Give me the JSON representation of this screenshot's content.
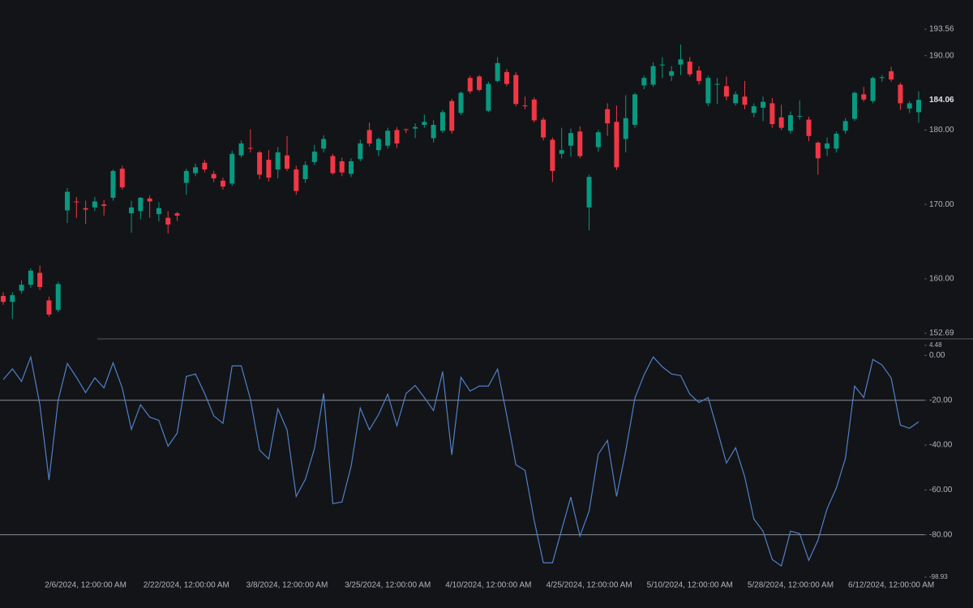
{
  "chart_data": [
    {
      "type": "candlestick",
      "categories": [
        null,
        null,
        null,
        null,
        null,
        null,
        null,
        null,
        null,
        "2/6/2024, 12:00:00 AM",
        null,
        null,
        null,
        null,
        null,
        null,
        null,
        null,
        null,
        null,
        "2/22/2024, 12:00:00 AM",
        null,
        null,
        null,
        null,
        null,
        null,
        null,
        null,
        null,
        null,
        "3/8/2024, 12:00:00 AM",
        null,
        null,
        null,
        null,
        null,
        null,
        null,
        null,
        null,
        null,
        "3/25/2024, 12:00:00 AM",
        null,
        null,
        null,
        null,
        null,
        null,
        null,
        null,
        null,
        null,
        "4/10/2024, 12:00:00 AM",
        null,
        null,
        null,
        null,
        null,
        null,
        null,
        null,
        null,
        null,
        "4/25/2024, 12:00:00 AM",
        null,
        null,
        null,
        null,
        null,
        null,
        null,
        null,
        null,
        null,
        "5/10/2024, 12:00:00 AM",
        null,
        null,
        null,
        null,
        null,
        null,
        null,
        null,
        null,
        null,
        "5/28/2024, 12:00:00 AM",
        null,
        null,
        null,
        null,
        null,
        null,
        null,
        null,
        null,
        null,
        "6/12/2024, 12:00:00 AM",
        null,
        null,
        null
      ],
      "ylim": [
        152.69,
        193.56
      ],
      "yticks": [
        152.69,
        {
          "value": 160,
          "label": "160.00"
        },
        {
          "value": 170,
          "label": "170.00"
        },
        {
          "value": 180,
          "label": "180.00"
        },
        {
          "value": 190,
          "label": "190.00"
        },
        193.56
      ],
      "series": [
        {
          "up_color": "#089981",
          "down_color": "#f23645",
          "open": [
            157.7,
            156.9,
            158.4,
            159.2,
            160.8,
            157.1,
            155.8,
            169.2,
            170.4,
            169.5,
            169.6,
            170.0,
            170.9,
            174.8,
            168.8,
            169.1,
            170.8,
            168.7,
            168.2,
            168.8,
            172.9,
            174.2,
            175.6,
            174.1,
            173.2,
            172.8,
            176.6,
            177.6,
            177.0,
            176.0,
            174.7,
            176.6,
            174.7,
            173.4,
            175.7,
            177.5,
            176.5,
            175.8,
            174.1,
            176.1,
            180.0,
            177.3,
            177.9,
            180.0,
            180.1,
            180.2,
            180.7,
            178.9,
            179.9,
            183.9,
            182.3,
            187.0,
            187.2,
            182.6,
            186.6,
            187.8,
            187.4,
            183.3,
            184.1,
            181.4,
            178.7,
            176.8,
            177.9,
            179.8,
            169.6,
            177.7,
            182.8,
            181.1,
            178.8,
            180.7,
            186.0,
            186.1,
            188.7,
            187.3,
            188.8,
            189.2,
            188.0,
            183.6,
            186.2,
            185.9,
            183.6,
            184.5,
            182.3,
            183.0,
            183.6,
            181.7,
            179.9,
            181.8,
            181.4,
            178.3,
            177.5,
            177.5,
            179.9,
            181.5,
            184.8,
            183.9,
            187.1,
            187.9,
            186.1,
            182.9,
            182.4
          ],
          "high": [
            158.2,
            158.2,
            159.8,
            161.4,
            161.8,
            157.6,
            159.6,
            172.2,
            171.0,
            170.5,
            171.0,
            170.6,
            174.7,
            175.2,
            170.5,
            171.0,
            171.2,
            170.3,
            169.1,
            169.0,
            174.8,
            175.5,
            176.0,
            174.5,
            173.6,
            177.2,
            178.6,
            180.1,
            177.2,
            177.3,
            177.7,
            179.2,
            175.2,
            175.8,
            178.0,
            179.3,
            176.8,
            176.3,
            176.2,
            178.7,
            181.0,
            179.0,
            180.3,
            180.4,
            180.2,
            180.9,
            182.1,
            181.3,
            182.7,
            184.2,
            185.2,
            187.3,
            187.4,
            186.5,
            189.8,
            188.2,
            187.8,
            184.5,
            184.4,
            181.7,
            179.0,
            180.3,
            180.2,
            180.5,
            174.0,
            180.0,
            183.6,
            183.3,
            184.7,
            185.0,
            187.3,
            189.1,
            189.8,
            188.6,
            191.5,
            189.8,
            188.6,
            187.3,
            187.0,
            187.2,
            185.2,
            186.6,
            183.6,
            184.5,
            184.3,
            183.4,
            182.5,
            184.0,
            181.8,
            178.5,
            179.0,
            179.8,
            181.6,
            185.2,
            185.8,
            187.2,
            187.4,
            188.5,
            186.4,
            183.9,
            185.2
          ],
          "low": [
            156.5,
            154.6,
            158.0,
            158.8,
            158.5,
            154.9,
            155.5,
            167.5,
            168.2,
            167.4,
            169.1,
            168.5,
            170.5,
            172.0,
            166.2,
            168.0,
            168.2,
            167.7,
            166.1,
            167.8,
            171.3,
            173.8,
            174.3,
            173.0,
            172.0,
            172.5,
            176.3,
            177.0,
            173.4,
            173.1,
            173.5,
            174.5,
            171.3,
            172.9,
            175.3,
            177.0,
            174.0,
            173.8,
            173.7,
            175.8,
            177.8,
            176.5,
            177.5,
            177.6,
            179.6,
            178.9,
            180.3,
            178.3,
            179.6,
            179.5,
            182.0,
            184.9,
            185.2,
            182.4,
            186.4,
            185.9,
            183.2,
            182.8,
            181.0,
            178.6,
            173.0,
            176.2,
            176.4,
            176.2,
            166.5,
            177.1,
            179.2,
            174.6,
            177.0,
            180.3,
            185.5,
            185.8,
            187.0,
            186.6,
            187.4,
            187.2,
            186.1,
            183.2,
            183.5,
            184.0,
            183.3,
            182.8,
            181.7,
            181.2,
            180.3,
            180.0,
            179.5,
            181.4,
            178.5,
            174.0,
            176.5,
            177.0,
            179.5,
            181.2,
            183.8,
            183.6,
            186.5,
            186.5,
            182.7,
            182.3,
            181.0
          ],
          "close": [
            156.9,
            157.8,
            159.2,
            161.1,
            158.9,
            155.2,
            159.3,
            171.7,
            170.3,
            169.3,
            170.4,
            169.8,
            174.5,
            172.3,
            169.6,
            170.9,
            170.4,
            169.5,
            167.3,
            168.5,
            174.5,
            175.0,
            174.7,
            173.5,
            172.4,
            176.8,
            178.2,
            177.5,
            174.0,
            173.6,
            177.0,
            174.8,
            171.8,
            175.3,
            177.1,
            178.8,
            174.2,
            174.3,
            175.8,
            178.2,
            178.2,
            178.8,
            179.9,
            178.2,
            180.0,
            180.4,
            181.1,
            180.7,
            182.4,
            179.9,
            185.0,
            185.2,
            185.4,
            186.2,
            189.0,
            186.2,
            183.5,
            183.2,
            181.3,
            179.0,
            174.5,
            177.3,
            179.6,
            176.5,
            173.7,
            179.7,
            180.9,
            175.0,
            181.6,
            184.8,
            187.0,
            188.6,
            188.8,
            187.9,
            189.5,
            187.5,
            186.6,
            187.0,
            186.2,
            184.5,
            184.8,
            183.4,
            183.2,
            183.8,
            180.8,
            180.3,
            182.0,
            181.9,
            179.2,
            176.2,
            178.2,
            179.5,
            181.2,
            185.0,
            184.1,
            187.0,
            187.1,
            186.8,
            183.6,
            183.6,
            184.06
          ]
        }
      ]
    },
    {
      "type": "line",
      "ylim": [
        -98.93,
        4.48
      ],
      "yticks": [
        -98.93,
        {
          "value": -80,
          "label": "-80.00"
        },
        {
          "value": -60,
          "label": "-60.00"
        },
        {
          "value": -40,
          "label": "-40.00"
        },
        {
          "value": -20,
          "label": "-20.00"
        },
        {
          "value": 0,
          "label": "0.00"
        },
        4.48
      ],
      "reference_lines": [
        -20,
        -80
      ],
      "series": [
        {
          "color": "#4f80c9",
          "values": [
            -10.8,
            -6,
            -11.6,
            -0.7,
            -22,
            -55.6,
            -20,
            -3.6,
            -9.8,
            -16.6,
            -10,
            -14.5,
            -3.3,
            -14.5,
            -33,
            -22,
            -27.5,
            -29,
            -40.5,
            -34.7,
            -9.4,
            -8.3,
            -17,
            -27,
            -30.3,
            -4.7,
            -4.7,
            -19.5,
            -42.3,
            -46.2,
            -23.8,
            -33.2,
            -62.9,
            -55.3,
            -41.5,
            -17,
            -66.1,
            -65.4,
            -49.5,
            -23.5,
            -33.2,
            -26.4,
            -17.3,
            -31.4,
            -17,
            -13.4,
            -18.8,
            -24.6,
            -7.2,
            -44.4,
            -9.8,
            -15.9,
            -13.7,
            -13.7,
            -6.1,
            -26.7,
            -48.8,
            -51.3,
            -73.7,
            -92.5,
            -92.5,
            -77.7,
            -63.2,
            -80.6,
            -69.4,
            -44.1,
            -37.9,
            -62.9,
            -42.6,
            -19.1,
            -8.7,
            -0.7,
            -5.1,
            -8.3,
            -9,
            -17.3,
            -21,
            -18.8,
            -33.2,
            -48,
            -41.2,
            -54.2,
            -73,
            -78.4,
            -91,
            -93.9,
            -78.4,
            -79.5,
            -91.4,
            -82.4,
            -68.3,
            -59.2,
            -45.9,
            -13.7,
            -18.8,
            -1.8,
            -4.3,
            -10.1,
            -31.1,
            -32.5,
            -29.6
          ]
        }
      ]
    }
  ]
}
